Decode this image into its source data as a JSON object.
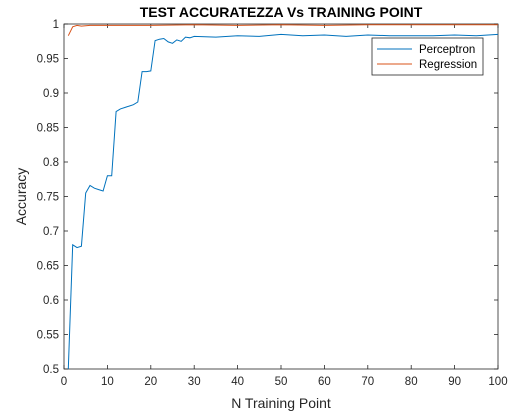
{
  "chart_data": {
    "type": "line",
    "title": "TEST ACCURATEZZA Vs TRAINING POINT",
    "xlabel": "N Training Point",
    "ylabel": "Accuracy",
    "xlim": [
      0,
      100
    ],
    "ylim": [
      0.5,
      1
    ],
    "xticks": [
      0,
      10,
      20,
      30,
      40,
      50,
      60,
      70,
      80,
      90,
      100
    ],
    "yticks": [
      0.5,
      0.55,
      0.6,
      0.65,
      0.7,
      0.75,
      0.8,
      0.85,
      0.9,
      0.95,
      1
    ],
    "xtick_labels": [
      "0",
      "10",
      "20",
      "30",
      "40",
      "50",
      "60",
      "70",
      "80",
      "90",
      "100"
    ],
    "ytick_labels": [
      "0.5",
      "0.55",
      "0.6",
      "0.65",
      "0.7",
      "0.75",
      "0.8",
      "0.85",
      "0.9",
      "0.95",
      "1"
    ],
    "grid": false,
    "legend_position": "top-right",
    "series": [
      {
        "name": "Perceptron",
        "color": "#0072BD",
        "x": [
          1,
          2,
          3,
          4,
          5,
          6,
          7,
          8,
          9,
          10,
          11,
          12,
          13,
          14,
          15,
          16,
          17,
          18,
          19,
          20,
          21,
          22,
          23,
          24,
          25,
          26,
          27,
          28,
          29,
          30,
          35,
          40,
          45,
          50,
          55,
          60,
          65,
          70,
          75,
          80,
          85,
          90,
          95,
          100
        ],
        "y": [
          0.5,
          0.68,
          0.676,
          0.678,
          0.755,
          0.766,
          0.762,
          0.76,
          0.758,
          0.78,
          0.78,
          0.873,
          0.877,
          0.879,
          0.881,
          0.883,
          0.887,
          0.931,
          0.931,
          0.932,
          0.976,
          0.978,
          0.979,
          0.974,
          0.972,
          0.977,
          0.975,
          0.981,
          0.98,
          0.982,
          0.981,
          0.983,
          0.982,
          0.985,
          0.983,
          0.984,
          0.982,
          0.984,
          0.983,
          0.983,
          0.983,
          0.984,
          0.983,
          0.985
        ]
      },
      {
        "name": "Regression",
        "color": "#D95319",
        "x": [
          1,
          2,
          3,
          4,
          6,
          10,
          20,
          30,
          40,
          50,
          60,
          70,
          80,
          90,
          100
        ],
        "y": [
          0.983,
          0.996,
          0.998,
          0.997,
          0.998,
          0.998,
          0.998,
          0.999,
          0.998,
          0.999,
          0.998,
          0.999,
          0.999,
          0.999,
          0.999
        ]
      }
    ]
  }
}
